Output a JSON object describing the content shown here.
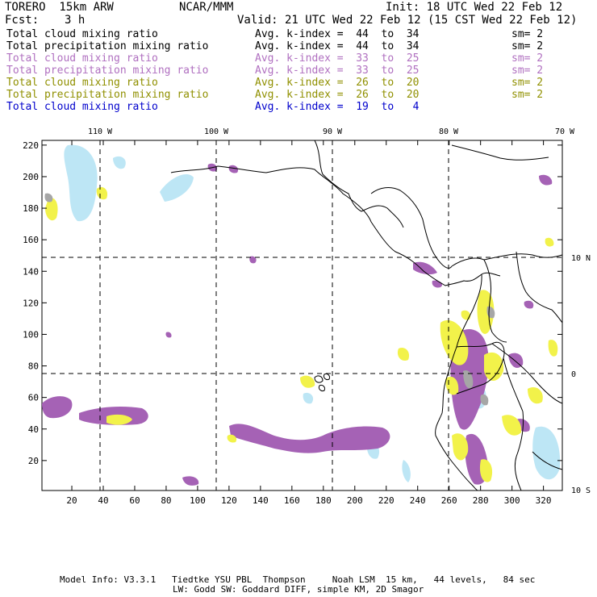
{
  "header": {
    "model": "TORERO  15km ARW",
    "center": "NCAR/MMM",
    "init": "Init: 18 UTC Wed 22 Feb 12",
    "fcst_label": "Fcst:",
    "fcst_value": "3 h",
    "valid": "Valid: 21 UTC Wed 22 Feb 12 (15 CST Wed 22 Feb 12)"
  },
  "legend": [
    {
      "field": "Total cloud mixing ratio",
      "k": "Avg. k-index =  44  to  34",
      "sm": "sm= 2",
      "color": "#000000"
    },
    {
      "field": "Total precipitation mixing ratio",
      "k": "Avg. k-index =  44  to  34",
      "sm": "sm= 2",
      "color": "#000000"
    },
    {
      "field": "Total cloud mixing ratio",
      "k": "Avg. k-index =  33  to  25",
      "sm": "sm= 2",
      "color": "#b070c0"
    },
    {
      "field": "Total precipitation mixing ratio",
      "k": "Avg. k-index =  33  to  25",
      "sm": "sm= 2",
      "color": "#b070c0"
    },
    {
      "field": "Total cloud mixing ratio",
      "k": "Avg. k-index =  26  to  20",
      "sm": "sm= 2",
      "color": "#909000"
    },
    {
      "field": "Total precipitation mixing ratio",
      "k": "Avg. k-index =  26  to  20",
      "sm": "sm= 2",
      "color": "#909000"
    },
    {
      "field": "Total cloud mixing ratio",
      "k": "Avg. k-index =  19  to   4",
      "sm": "",
      "color": "#0000cc"
    }
  ],
  "map": {
    "lon_labels": [
      "110 W",
      "100 W",
      "90 W",
      "80 W",
      "70 W"
    ],
    "lat_labels": [
      "10 N",
      "0",
      "10 S"
    ],
    "x_ticks": [
      "20",
      "40",
      "60",
      "80",
      "100",
      "120",
      "140",
      "160",
      "180",
      "200",
      "220",
      "240",
      "260",
      "280",
      "300",
      "320"
    ],
    "y_ticks": [
      "20",
      "40",
      "60",
      "80",
      "100",
      "120",
      "140",
      "160",
      "180",
      "200",
      "220"
    ],
    "colors": {
      "purple": "#a562b5",
      "yellow": "#f2f24a",
      "light_blue": "#bde6f5",
      "gray": "#a6a6a6"
    }
  },
  "footer": {
    "line1": "Model Info: V3.3.1   Tiedtke YSU PBL  Thompson     Noah LSM  15 km,   44 levels,   84 sec",
    "line2": "LW: Godd SW: Goddard DIFF, simple KM, 2D Smagor"
  }
}
